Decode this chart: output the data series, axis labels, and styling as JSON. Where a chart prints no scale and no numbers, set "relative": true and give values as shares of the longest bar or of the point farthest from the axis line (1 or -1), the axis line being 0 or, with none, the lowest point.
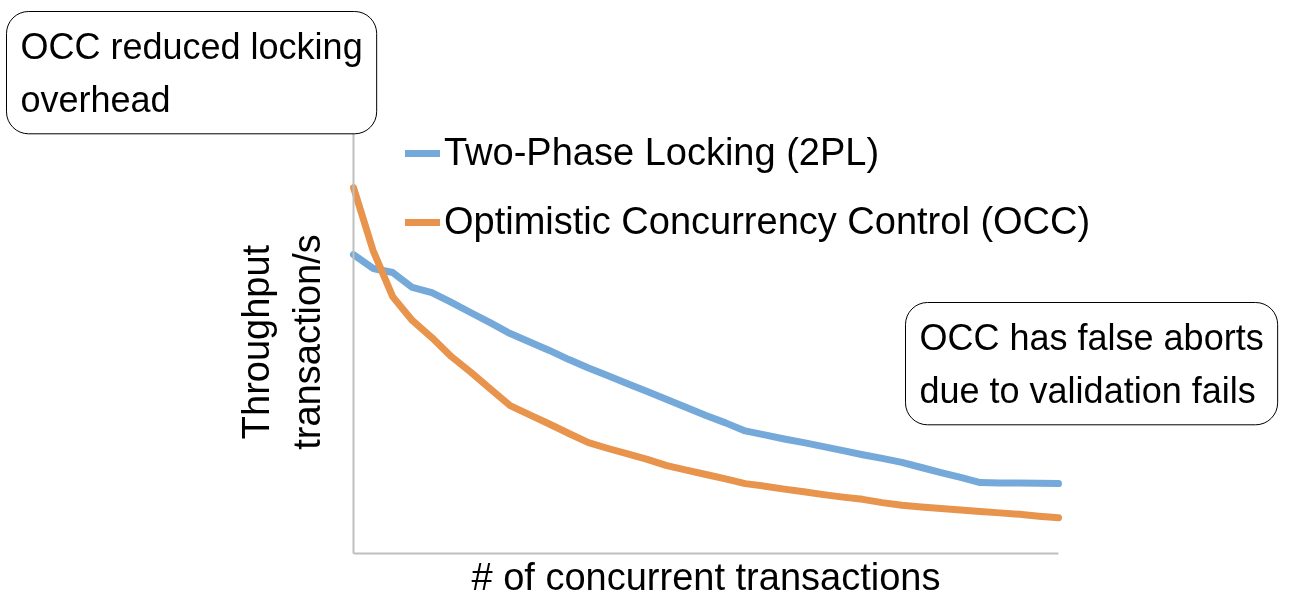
{
  "chart_data": {
    "type": "line",
    "relative": true,
    "xlabel": "# of concurrent transactions",
    "ylabel": "Throughput transaction/s",
    "categories": [
      null,
      null,
      null,
      null,
      null,
      null,
      null,
      null,
      null,
      null,
      null,
      null,
      null,
      null,
      null,
      null,
      null,
      null,
      null,
      null,
      null,
      null,
      null,
      null,
      null,
      null,
      null,
      null,
      null,
      null,
      null,
      null,
      null,
      null,
      null,
      null,
      null
    ],
    "series": [
      {
        "name": "Two-Phase Locking (2PL)",
        "color": "#75a9da",
        "values": [
          0.817,
          0.779,
          0.768,
          0.727,
          0.713,
          0.686,
          0.658,
          0.63,
          0.601,
          0.578,
          0.555,
          0.53,
          0.507,
          0.486,
          0.464,
          0.443,
          0.421,
          0.399,
          0.377,
          0.357,
          0.335,
          0.324,
          0.313,
          0.303,
          0.292,
          0.281,
          0.27,
          0.26,
          0.249,
          0.235,
          0.221,
          0.208,
          0.194,
          0.193,
          0.193,
          0.192,
          0.191
        ]
      },
      {
        "name": "Optimistic Concurrency Control (OCC)",
        "color": "#e8944c",
        "values": [
          1.0,
          0.828,
          0.702,
          0.637,
          0.59,
          0.538,
          0.495,
          0.449,
          0.404,
          0.379,
          0.354,
          0.328,
          0.303,
          0.287,
          0.272,
          0.257,
          0.24,
          0.228,
          0.216,
          0.204,
          0.191,
          0.184,
          0.176,
          0.169,
          0.161,
          0.154,
          0.148,
          0.139,
          0.132,
          0.127,
          0.123,
          0.119,
          0.115,
          0.111,
          0.107,
          0.102,
          0.098
        ]
      }
    ],
    "legend": "top",
    "annotations": [
      "OCC reduced locking overhead",
      "OCC has false aborts due to validation fails"
    ]
  }
}
